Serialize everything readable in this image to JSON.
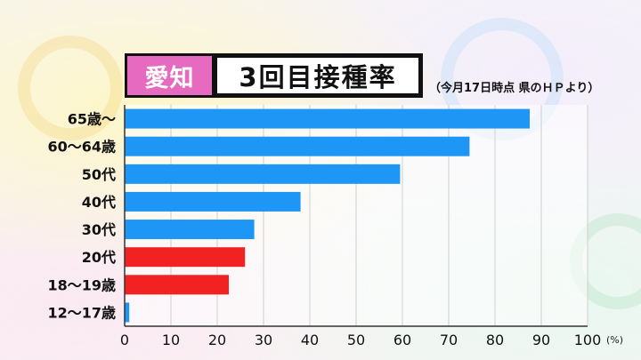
{
  "header": {
    "prefecture": "愛知",
    "title": "3回目接種率",
    "note": "（今月17日時点  県のＨＰより）"
  },
  "colors": {
    "bar_blue": "#1e96f5",
    "bar_red": "#f22222",
    "prefecture_bg": "#e66ac0"
  },
  "chart_data": {
    "type": "bar",
    "orientation": "horizontal",
    "categories": [
      "65歳〜",
      "60〜64歳",
      "50代",
      "40代",
      "30代",
      "20代",
      "18〜19歳",
      "12〜17歳"
    ],
    "values": [
      87.5,
      74.5,
      59.5,
      38,
      28,
      26,
      22.5,
      1
    ],
    "bar_colors": [
      "#1e96f5",
      "#1e96f5",
      "#1e96f5",
      "#1e96f5",
      "#1e96f5",
      "#f22222",
      "#f22222",
      "#1e96f5"
    ],
    "xlim": [
      0,
      100
    ],
    "xticks": [
      0,
      10,
      20,
      30,
      40,
      50,
      60,
      70,
      80,
      90,
      100
    ],
    "xunit": "(%)",
    "grid": true
  }
}
